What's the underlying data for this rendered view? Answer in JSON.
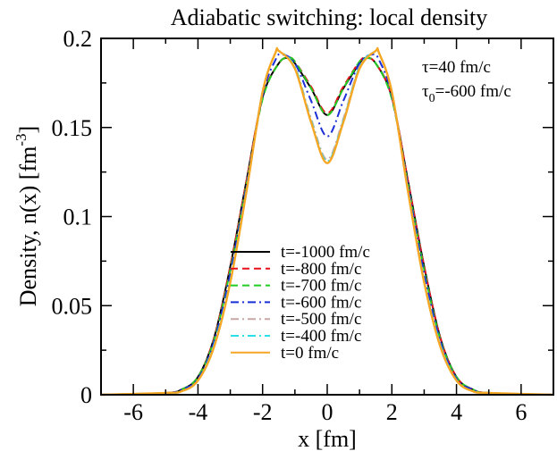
{
  "chart_data": {
    "type": "line",
    "title": "Adiabatic switching: local density",
    "xlabel": "x [fm]",
    "ylabel": "Density, n(x) [fm",
    "ylabel_sup": "-3",
    "ylabel_close": "]",
    "xlim": [
      -7,
      7
    ],
    "ylim": [
      0,
      0.2
    ],
    "xticks": [
      -6,
      -4,
      -2,
      0,
      2,
      4,
      6
    ],
    "xtick_labels": [
      "-6",
      "-4",
      "-2",
      "0",
      "2",
      "4",
      "6"
    ],
    "yticks": [
      0,
      0.05,
      0.1,
      0.15,
      0.2
    ],
    "ytick_labels": [
      "0",
      "0.05",
      "0.1",
      "0.15",
      "0.2"
    ],
    "annotations": {
      "tau": "τ=40 fm/c",
      "tau0_symbol": "τ",
      "tau0_sub": "0",
      "tau0_rest": "=-600 fm/c"
    },
    "legend_position": "bottom-center",
    "series": [
      {
        "name": "t=-1000 fm/c",
        "color": "#000000",
        "dash": "solid",
        "x": [
          -7,
          -5,
          -4.5,
          -4,
          -3.5,
          -3,
          -2.5,
          -2,
          -1.5,
          -1.2,
          -1,
          -0.5,
          0,
          0.5,
          1,
          1.2,
          1.5,
          2,
          2.5,
          3,
          3.5,
          4,
          4.5,
          5,
          7
        ],
        "y": [
          0,
          0.001,
          0.003,
          0.01,
          0.032,
          0.072,
          0.12,
          0.167,
          0.186,
          0.189,
          0.186,
          0.172,
          0.157,
          0.172,
          0.186,
          0.189,
          0.186,
          0.167,
          0.12,
          0.072,
          0.032,
          0.01,
          0.003,
          0.001,
          0
        ]
      },
      {
        "name": "t=-800 fm/c",
        "color": "#e8101a",
        "dash": "dashed",
        "x": [
          -7,
          -5,
          -4.5,
          -4,
          -3.5,
          -3,
          -2.5,
          -2,
          -1.5,
          -1.2,
          -1,
          -0.5,
          0,
          0.5,
          1,
          1.2,
          1.5,
          2,
          2.5,
          3,
          3.5,
          4,
          4.5,
          5,
          7
        ],
        "y": [
          0,
          0.001,
          0.003,
          0.01,
          0.032,
          0.072,
          0.12,
          0.167,
          0.186,
          0.189,
          0.187,
          0.173,
          0.158,
          0.173,
          0.187,
          0.189,
          0.186,
          0.167,
          0.12,
          0.072,
          0.032,
          0.01,
          0.003,
          0.001,
          0
        ]
      },
      {
        "name": "t=-700 fm/c",
        "color": "#22cc22",
        "dash": "dashed",
        "x": [
          -7,
          -5,
          -4.5,
          -4,
          -3.5,
          -3,
          -2.5,
          -2,
          -1.5,
          -1.2,
          -1,
          -0.5,
          0,
          0.5,
          1,
          1.2,
          1.5,
          2,
          2.5,
          3,
          3.5,
          4,
          4.5,
          5,
          7
        ],
        "y": [
          0,
          0.001,
          0.003,
          0.01,
          0.031,
          0.07,
          0.118,
          0.166,
          0.186,
          0.189,
          0.187,
          0.172,
          0.157,
          0.172,
          0.187,
          0.189,
          0.186,
          0.166,
          0.118,
          0.07,
          0.031,
          0.01,
          0.003,
          0.001,
          0
        ]
      },
      {
        "name": "t=-600 fm/c",
        "color": "#1b2fd8",
        "dash": "dashdot",
        "x": [
          -7,
          -5,
          -4.5,
          -4,
          -3.5,
          -3,
          -2.5,
          -2,
          -1.6,
          -1.4,
          -1,
          -0.5,
          0,
          0.5,
          1,
          1.4,
          1.6,
          2,
          2.5,
          3,
          3.5,
          4,
          4.5,
          5,
          7
        ],
        "y": [
          0,
          0.001,
          0.003,
          0.009,
          0.03,
          0.068,
          0.117,
          0.168,
          0.188,
          0.191,
          0.186,
          0.165,
          0.145,
          0.165,
          0.186,
          0.191,
          0.188,
          0.168,
          0.117,
          0.068,
          0.03,
          0.009,
          0.003,
          0.001,
          0
        ]
      },
      {
        "name": "t=-500 fm/c",
        "color": "#c8a7a7",
        "dash": "dashdot",
        "x": [
          -7,
          -5,
          -4.5,
          -4,
          -3.5,
          -3,
          -2.5,
          -2,
          -1.6,
          -1.5,
          -1,
          -0.5,
          0,
          0.5,
          1,
          1.5,
          1.6,
          2,
          2.5,
          3,
          3.5,
          4,
          4.5,
          5,
          7
        ],
        "y": [
          0,
          0.001,
          0.002,
          0.008,
          0.028,
          0.064,
          0.115,
          0.17,
          0.192,
          0.193,
          0.184,
          0.155,
          0.132,
          0.155,
          0.184,
          0.193,
          0.192,
          0.17,
          0.115,
          0.064,
          0.028,
          0.008,
          0.002,
          0.001,
          0
        ]
      },
      {
        "name": "t=-400 fm/c",
        "color": "#28e0e8",
        "dash": "dashdot",
        "x": [
          -7,
          -5,
          -4.5,
          -4,
          -3.5,
          -3,
          -2.5,
          -2,
          -1.6,
          -1.5,
          -1,
          -0.5,
          0,
          0.5,
          1,
          1.5,
          1.6,
          2,
          2.5,
          3,
          3.5,
          4,
          4.5,
          5,
          7
        ],
        "y": [
          0,
          0.001,
          0.002,
          0.008,
          0.028,
          0.064,
          0.115,
          0.17,
          0.192,
          0.193,
          0.184,
          0.154,
          0.131,
          0.154,
          0.184,
          0.193,
          0.192,
          0.17,
          0.115,
          0.064,
          0.028,
          0.008,
          0.002,
          0.001,
          0
        ]
      },
      {
        "name": "t=0 fm/c",
        "color": "#f5a623",
        "dash": "solid",
        "x": [
          -7,
          -5,
          -4.5,
          -4,
          -3.5,
          -3,
          -2.5,
          -2,
          -1.6,
          -1.5,
          -1,
          -0.5,
          0,
          0.5,
          1,
          1.5,
          1.6,
          2,
          2.5,
          3,
          3.5,
          4,
          4.5,
          5,
          7
        ],
        "y": [
          0,
          0.001,
          0.002,
          0.008,
          0.027,
          0.063,
          0.114,
          0.17,
          0.192,
          0.193,
          0.183,
          0.153,
          0.13,
          0.153,
          0.183,
          0.193,
          0.192,
          0.17,
          0.114,
          0.063,
          0.027,
          0.008,
          0.002,
          0.001,
          0
        ]
      }
    ]
  }
}
